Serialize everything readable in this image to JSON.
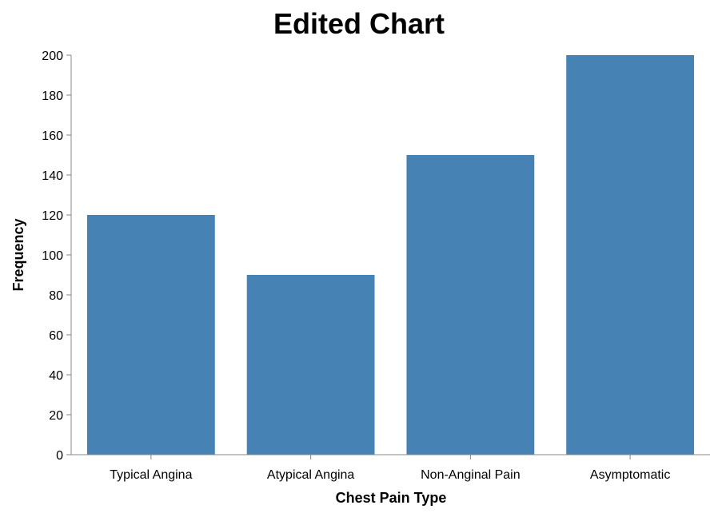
{
  "chart_data": {
    "type": "bar",
    "title": "Edited Chart",
    "xlabel": "Chest Pain Type",
    "ylabel": "Frequency",
    "categories": [
      "Typical Angina",
      "Atypical Angina",
      "Non-Anginal Pain",
      "Asymptomatic"
    ],
    "values": [
      120,
      90,
      150,
      200
    ],
    "ylim": [
      0,
      200
    ],
    "yticks": [
      0,
      20,
      40,
      60,
      80,
      100,
      120,
      140,
      160,
      180,
      200
    ],
    "grid": false,
    "bar_color": "#4682b4",
    "axis_color": "#888888",
    "text_color": "#000000"
  }
}
